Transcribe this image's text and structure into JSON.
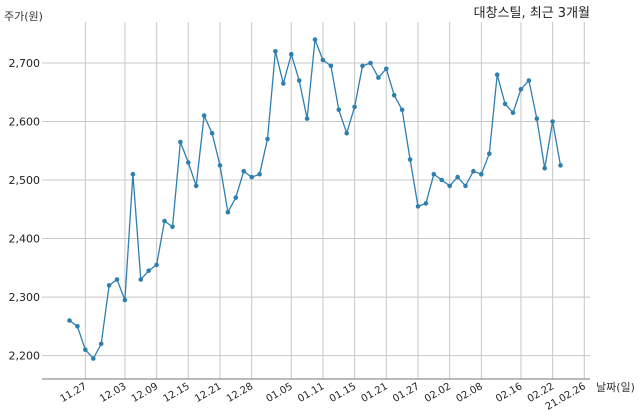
{
  "chart_data": {
    "type": "line",
    "title": "대창스틸, 최근 3개월",
    "ylabel": "주가(원)",
    "xlabel": "날짜(일)",
    "ylim": [
      2160,
      2770
    ],
    "yticks": [
      2200,
      2300,
      2400,
      2500,
      2600,
      2700
    ],
    "ytick_labels": [
      "2,200",
      "2,300",
      "2,400",
      "2,500",
      "2,600",
      "2,700"
    ],
    "grid": true,
    "line_color": "#2e7fb0",
    "xticks": [
      {
        "label": "11.27",
        "index": 2
      },
      {
        "label": "12.03",
        "index": 7
      },
      {
        "label": "12.09",
        "index": 11
      },
      {
        "label": "12.15",
        "index": 15
      },
      {
        "label": "12.21",
        "index": 19
      },
      {
        "label": "12.28",
        "index": 23
      },
      {
        "label": "01.05",
        "index": 28
      },
      {
        "label": "01.11",
        "index": 32
      },
      {
        "label": "01.15",
        "index": 36
      },
      {
        "label": "01.21",
        "index": 40
      },
      {
        "label": "01.27",
        "index": 44
      },
      {
        "label": "02.02",
        "index": 48
      },
      {
        "label": "02.08",
        "index": 52
      },
      {
        "label": "02.16",
        "index": 57
      },
      {
        "label": "02.22",
        "index": 61
      },
      {
        "label": "21.02.26",
        "index": 65
      }
    ],
    "values": [
      2260,
      2250,
      2210,
      2195,
      2220,
      2320,
      2330,
      2295,
      2510,
      2330,
      2345,
      2355,
      2430,
      2420,
      2565,
      2530,
      2490,
      2610,
      2580,
      2525,
      2445,
      2470,
      2515,
      2505,
      2510,
      2570,
      2720,
      2665,
      2715,
      2670,
      2605,
      2740,
      2705,
      2695,
      2620,
      2580,
      2625,
      2695,
      2700,
      2675,
      2690,
      2645,
      2620,
      2535,
      2455,
      2460,
      2510,
      2500,
      2490,
      2505,
      2490,
      2515,
      2510,
      2545,
      2680,
      2630,
      2615,
      2655,
      2670,
      2605,
      2520,
      2600,
      2525
    ]
  }
}
